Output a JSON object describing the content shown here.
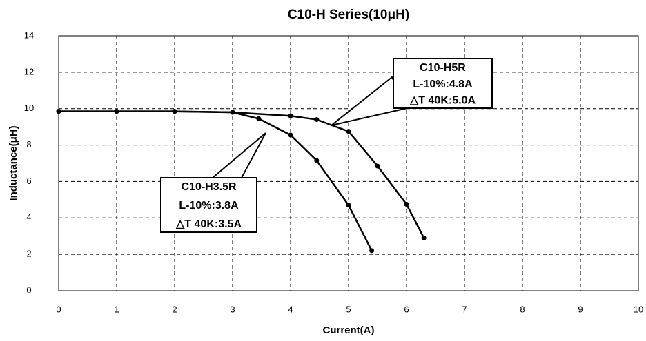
{
  "chart_data": {
    "type": "line",
    "title": "C10-H Series(10μH)",
    "x_label": "Current(A)",
    "y_label": "Inductance(μH)",
    "xlim": [
      0,
      10
    ],
    "xticks": [
      0,
      1,
      2,
      3,
      4,
      5,
      6,
      7,
      8,
      9,
      10
    ],
    "ylim": [
      0,
      14
    ],
    "yticks": [
      0,
      2,
      4,
      6,
      8,
      10,
      12,
      14
    ],
    "grid": true,
    "series": [
      {
        "color": "#000000",
        "x": [
          0,
          1,
          2,
          3,
          4,
          4.45,
          5,
          5.5,
          6,
          6.3
        ],
        "values": [
          9.85,
          9.85,
          9.85,
          9.8,
          9.6,
          9.4,
          8.75,
          6.85,
          4.75,
          2.9
        ]
      },
      {
        "color": "#000000",
        "x": [
          0,
          1,
          2,
          3,
          3.45,
          4,
          4.45,
          5,
          5.4
        ],
        "values": [
          9.85,
          9.85,
          9.85,
          9.8,
          9.45,
          8.55,
          7.15,
          4.7,
          2.2
        ]
      }
    ],
    "annotations": [
      {
        "lines": [
          "C10-H5R",
          "L-10%:4.8A",
          "△T 40K:5.0A"
        ]
      },
      {
        "lines": [
          "C10-H3.5R",
          "L-10%:3.8A",
          "△T 40K:3.5A"
        ]
      }
    ]
  }
}
